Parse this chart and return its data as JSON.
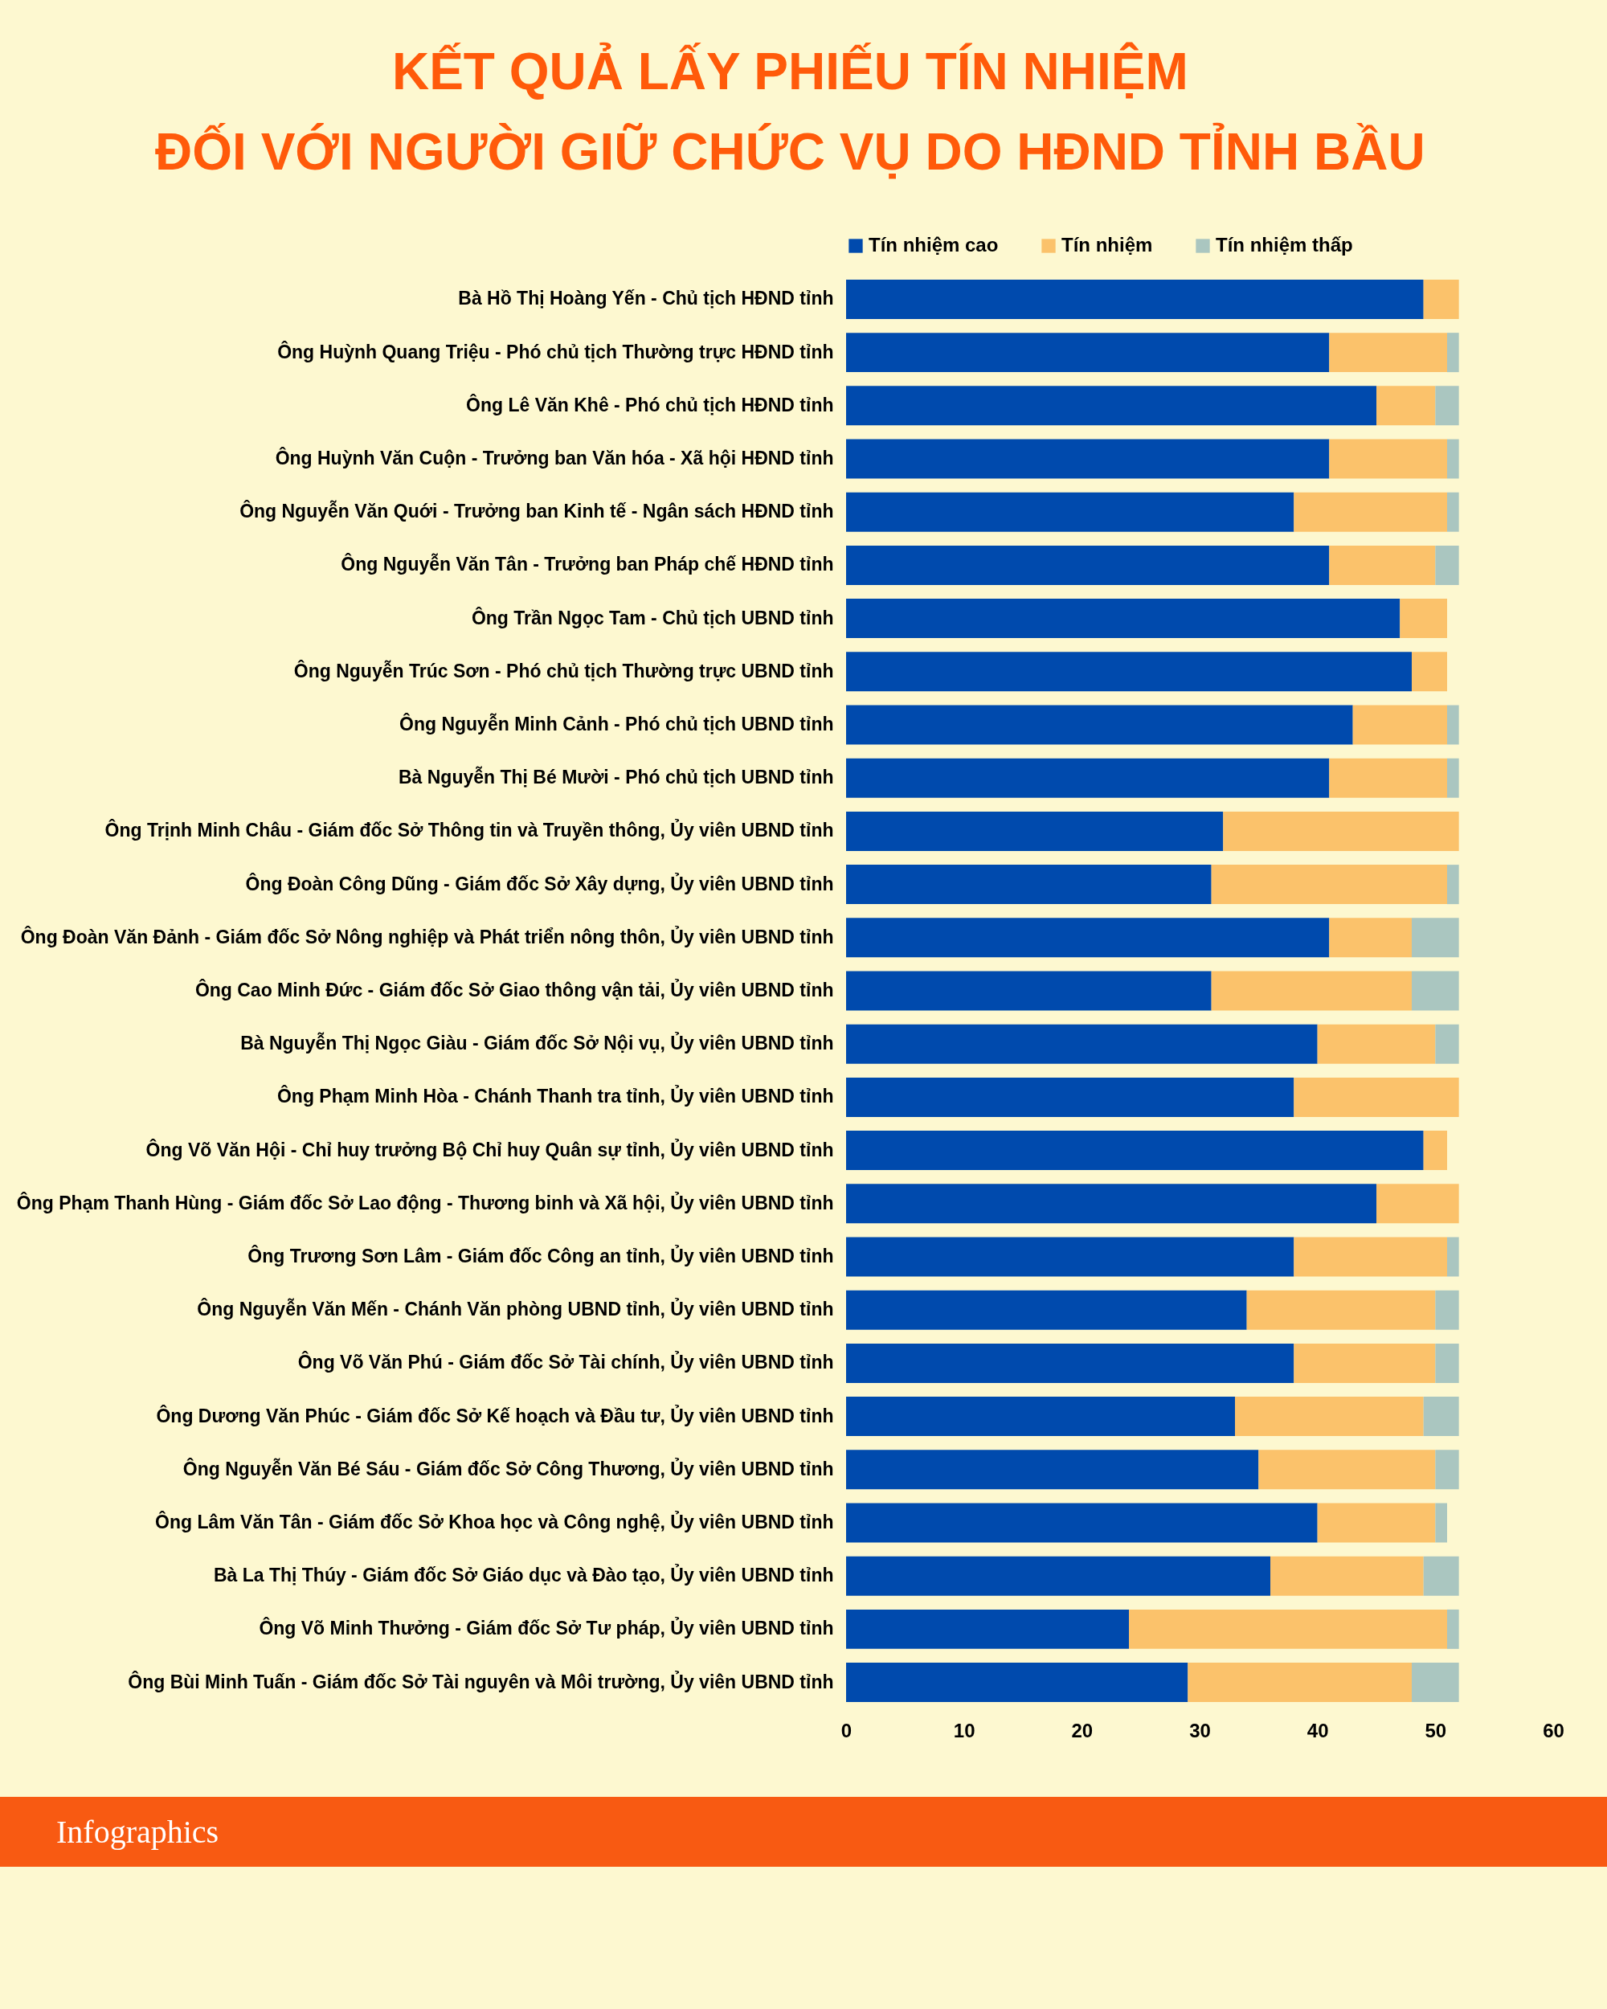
{
  "chart_data": {
    "type": "bar",
    "orientation": "horizontal",
    "stacked": true,
    "title": [
      "KẾT QUẢ LẤY PHIẾU TÍN NHIỆM",
      "ĐỐI VỚI NGƯỜI GIỮ CHỨC VỤ DO HĐND TỈNH BẦU"
    ],
    "categories": [
      "Bà Hồ Thị Hoàng Yến - Chủ tịch HĐND tỉnh",
      "Ông Huỳnh Quang Triệu - Phó chủ tịch Thường trực HĐND tỉnh",
      "Ông Lê Văn Khê - Phó chủ tịch HĐND tỉnh",
      "Ông Huỳnh Văn Cuộn - Trưởng ban Văn hóa - Xã hội HĐND tỉnh",
      "Ông Nguyễn Văn Quới - Trưởng ban Kinh tế - Ngân sách HĐND tỉnh",
      "Ông Nguyễn Văn Tân - Trưởng ban Pháp chế HĐND tỉnh",
      "Ông Trần Ngọc Tam - Chủ tịch UBND tỉnh",
      "Ông Nguyễn Trúc Sơn - Phó chủ tịch Thường trực UBND tỉnh",
      "Ông Nguyễn Minh Cảnh - Phó chủ tịch UBND tỉnh",
      "Bà Nguyễn Thị Bé Mười - Phó chủ tịch UBND tỉnh",
      "Ông Trịnh Minh Châu - Giám đốc Sở Thông tin và Truyền thông, Ủy viên UBND tỉnh",
      "Ông Đoàn Công Dũng - Giám đốc Sở Xây dựng, Ủy viên UBND tỉnh",
      "Ông Đoàn Văn Đảnh - Giám đốc Sở Nông nghiệp và Phát triển nông thôn, Ủy viên UBND tỉnh",
      "Ông Cao Minh Đức - Giám đốc Sở Giao thông vận tải, Ủy viên UBND tỉnh",
      "Bà Nguyễn Thị Ngọc Giàu - Giám đốc Sở Nội vụ, Ủy viên UBND tỉnh",
      "Ông Phạm Minh Hòa - Chánh Thanh tra tỉnh, Ủy viên UBND tỉnh",
      "Ông Võ Văn Hội - Chỉ huy trưởng Bộ Chỉ huy Quân sự tỉnh, Ủy viên UBND tỉnh",
      "Ông Phạm Thanh Hùng - Giám đốc Sở Lao động - Thương binh và Xã hội, Ủy viên UBND tỉnh",
      "Ông Trương Sơn Lâm - Giám đốc Công an tỉnh, Ủy viên UBND tỉnh",
      "Ông Nguyễn Văn Mến - Chánh Văn phòng UBND tỉnh, Ủy viên UBND tỉnh",
      "Ông Võ Văn Phú - Giám đốc Sở Tài chính, Ủy viên UBND tỉnh",
      "Ông Dương Văn Phúc - Giám đốc Sở Kế hoạch và Đầu tư, Ủy viên UBND tỉnh",
      "Ông Nguyễn Văn Bé Sáu - Giám đốc Sở Công Thương, Ủy viên UBND tỉnh",
      "Ông Lâm Văn Tân - Giám đốc Sở Khoa học và Công nghệ, Ủy viên UBND tỉnh",
      "Bà La Thị Thúy - Giám đốc Sở Giáo dục và Đào tạo, Ủy viên UBND tỉnh",
      "Ông Võ Minh Thưởng - Giám đốc Sở Tư pháp, Ủy viên UBND tỉnh",
      "Ông Bùi Minh Tuấn - Giám đốc Sở Tài nguyên và Môi trường, Ủy viên UBND tỉnh"
    ],
    "series": [
      {
        "name": "Tín nhiệm cao",
        "color": "#004aad",
        "values": [
          49,
          41,
          45,
          41,
          38,
          41,
          47,
          48,
          43,
          41,
          32,
          31,
          41,
          31,
          40,
          38,
          49,
          45,
          38,
          34,
          38,
          33,
          35,
          40,
          36,
          24,
          29
        ]
      },
      {
        "name": "Tín nhiệm",
        "color": "#fbc26b",
        "values": [
          3,
          10,
          5,
          10,
          13,
          9,
          4,
          3,
          8,
          10,
          20,
          20,
          7,
          17,
          10,
          14,
          2,
          7,
          13,
          16,
          12,
          16,
          15,
          10,
          13,
          27,
          19
        ]
      },
      {
        "name": "Tín nhiệm thấp",
        "color": "#aac6c0",
        "values": [
          0,
          1,
          2,
          1,
          1,
          2,
          0,
          0,
          1,
          1,
          0,
          1,
          4,
          4,
          2,
          0,
          0,
          0,
          1,
          2,
          2,
          3,
          2,
          1,
          3,
          1,
          4
        ]
      }
    ],
    "xlim": [
      0,
      60
    ],
    "xticks": [
      0,
      10,
      20,
      30,
      40,
      50,
      60
    ],
    "grid": false,
    "legend": "top",
    "annotations": [
      "Infographics"
    ]
  }
}
